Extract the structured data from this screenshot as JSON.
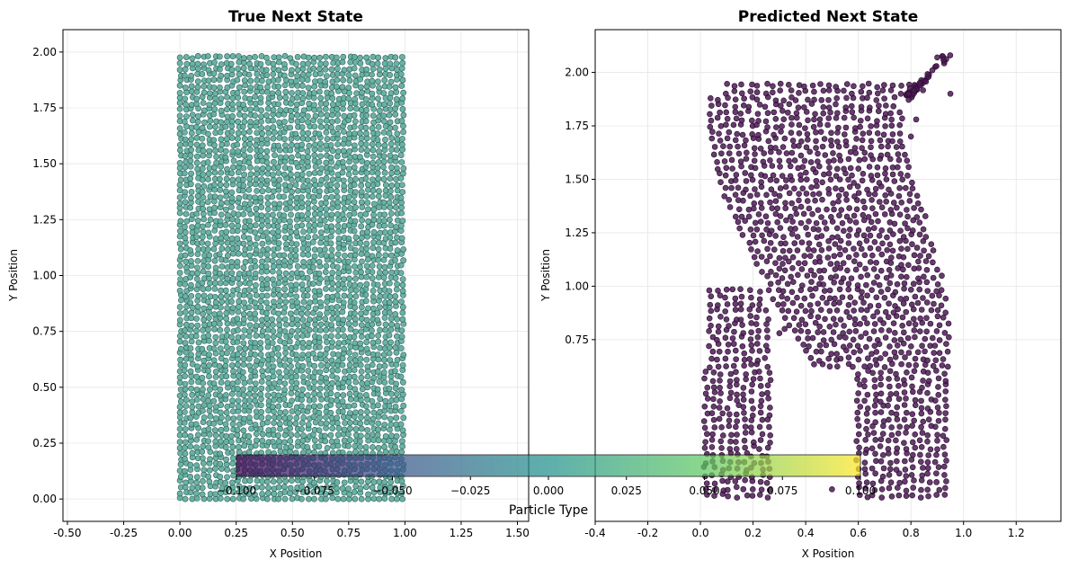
{
  "chart_data": [
    {
      "type": "scatter",
      "title": "True Next State",
      "xlabel": "X Position",
      "ylabel": "Y Position",
      "xlim": [
        -0.52,
        1.55
      ],
      "ylim": [
        -0.1,
        2.1
      ],
      "xticks": [
        "-0.50",
        "-0.25",
        "0.00",
        "0.25",
        "0.50",
        "0.75",
        "1.00",
        "1.25",
        "1.50"
      ],
      "yticks": [
        "0.00",
        "0.25",
        "0.50",
        "0.75",
        "1.00",
        "1.25",
        "1.50",
        "1.75",
        "2.00"
      ],
      "grid": true,
      "marker_color": "#5aaa9b",
      "particle_region": {
        "x_range": [
          0.0,
          1.0
        ],
        "y_range": [
          0.0,
          2.0
        ],
        "shape": "rectangle"
      }
    },
    {
      "type": "scatter",
      "title": "Predicted Next State",
      "xlabel": "X Position",
      "ylabel": "Y Position",
      "xlim": [
        -0.4,
        1.37
      ],
      "ylim": [
        -0.1,
        2.2
      ],
      "xticks": [
        "-0.4",
        "-0.2",
        "0.0",
        "0.2",
        "0.4",
        "0.6",
        "0.8",
        "1.0",
        "1.2"
      ],
      "yticks": [
        "0.75",
        "1.00",
        "1.25",
        "1.50",
        "1.75",
        "2.00"
      ],
      "grid": true,
      "marker_color": "#4a1a52",
      "particle_region": {
        "shape": "deformed-s-column",
        "x_range": [
          0.0,
          0.95
        ],
        "y_range": [
          0.0,
          2.1
        ]
      }
    }
  ],
  "colorbar": {
    "label": "Particle Type",
    "orientation": "horizontal",
    "range": [
      -0.1,
      0.1
    ],
    "ticks": [
      "−0.100",
      "−0.075",
      "−0.050",
      "−0.025",
      "0.000",
      "0.025",
      "0.050",
      "0.075",
      "0.100"
    ],
    "colormap": [
      "#440154",
      "#3b528b",
      "#21918c",
      "#5ec962",
      "#fde725"
    ]
  }
}
